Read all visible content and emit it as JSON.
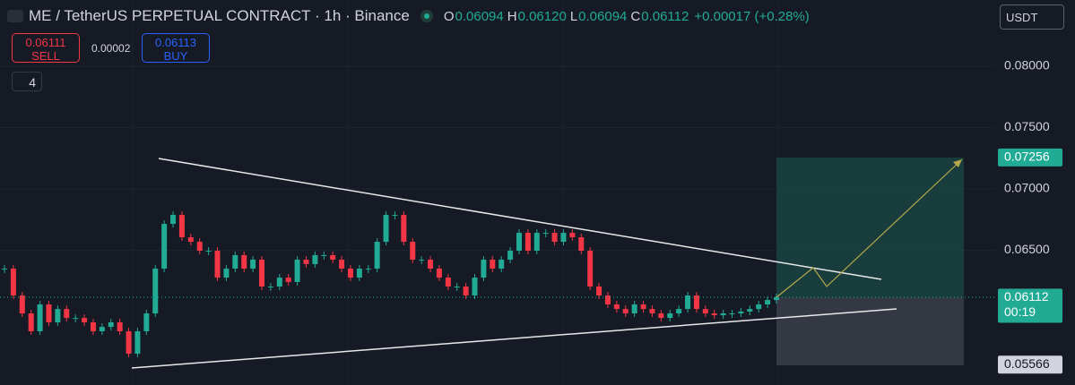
{
  "header": {
    "title": "ME / TetherUS PERPETUAL CONTRACT · 1h · Binance",
    "o_label": "O",
    "o": "0.06094",
    "h_label": "H",
    "h": "0.06120",
    "l_label": "L",
    "l": "0.06094",
    "c_label": "C",
    "c": "0.06112",
    "change": "+0.00017 (+0.28%)"
  },
  "trade": {
    "sell_price": "0.06111",
    "sell_label": "SELL",
    "spread": "0.00002",
    "buy_price": "0.06113",
    "buy_label": "BUY"
  },
  "indicators": "4",
  "currency": "USDT",
  "chart": {
    "ylim": [
      0.054,
      0.0854
    ],
    "up_color": "#22ab94",
    "down_color": "#f23645",
    "yticks": [
      {
        "value": 0.08,
        "label": "0.08000"
      },
      {
        "value": 0.075,
        "label": "0.07500"
      },
      {
        "value": 0.07,
        "label": "0.07000"
      },
      {
        "value": 0.065,
        "label": "0.06500"
      }
    ],
    "markers": [
      {
        "value": 0.07256,
        "label": "0.07256",
        "color": "#22ab94"
      },
      {
        "value": 0.06113,
        "label": "0.06113",
        "color": "#5d606b"
      },
      {
        "value": 0.06112,
        "label": "0.06112",
        "timer": "00:19",
        "color": "#22ab94"
      },
      {
        "value": 0.05566,
        "label": "0.05566",
        "color": "#d1d4dc"
      }
    ],
    "closes": [
      0.06349,
      0.0613,
      0.05984,
      0.05838,
      0.06057,
      0.05911,
      0.0602,
      0.05947,
      0.05947,
      0.05911,
      0.05838,
      0.05874,
      0.05911,
      0.05838,
      0.05655,
      0.05838,
      0.05984,
      0.06349,
      0.06714,
      0.06787,
      0.06605,
      0.06568,
      0.06495,
      0.06495,
      0.06276,
      0.06349,
      0.06459,
      0.06349,
      0.06422,
      0.06203,
      0.06203,
      0.06276,
      0.0624,
      0.06422,
      0.06386,
      0.06459,
      0.06459,
      0.06422,
      0.06349,
      0.06276,
      0.06349,
      0.06349,
      0.06568,
      0.06787,
      0.06787,
      0.06568,
      0.06422,
      0.06422,
      0.06349,
      0.06276,
      0.06203,
      0.06203,
      0.0613,
      0.06276,
      0.06422,
      0.06349,
      0.06422,
      0.06495,
      0.06641,
      0.06495,
      0.06641,
      0.06641,
      0.06568,
      0.06641,
      0.06605,
      0.06495,
      0.06203,
      0.0613,
      0.06057,
      0.0602,
      0.05984,
      0.06057,
      0.0602,
      0.05984,
      0.05947,
      0.05984,
      0.0602,
      0.0613,
      0.0602,
      0.05984,
      0.05969,
      0.05984,
      0.05984,
      0.05999,
      0.0602,
      0.06057,
      0.06093,
      0.06115
    ]
  }
}
